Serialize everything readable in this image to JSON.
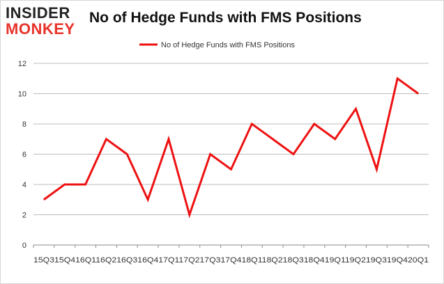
{
  "logo": {
    "line1": "INSIDER",
    "line2": "MONKEY"
  },
  "chart_data": {
    "type": "line",
    "title": "No of Hedge Funds with FMS Positions",
    "xlabel": "",
    "ylabel": "",
    "categories": [
      "2015Q3",
      "2015Q4",
      "2016Q1",
      "2016Q2",
      "2016Q3",
      "2016Q4",
      "2017Q1",
      "2017Q2",
      "2017Q3",
      "2017Q4",
      "2018Q1",
      "2018Q2",
      "2018Q3",
      "2018Q4",
      "2019Q1",
      "2019Q2",
      "2019Q3",
      "2019Q4",
      "2020Q1"
    ],
    "tick_label_strip": "15Q315Q416Q116Q216Q316Q417Q117Q217Q317Q418Q118Q218Q318Q419Q119Q219Q319Q420Q1",
    "series": [
      {
        "name": "No of Hedge Funds with FMS Positions",
        "color": "#ee1111",
        "values": [
          3,
          4,
          4,
          7,
          6,
          3,
          7,
          2,
          6,
          5,
          8,
          7,
          6,
          8,
          7,
          9,
          5,
          11,
          10
        ]
      }
    ],
    "ylim": [
      0,
      12
    ],
    "yticks": [
      0,
      2,
      4,
      6,
      8,
      10,
      12
    ],
    "grid": true,
    "legend": "top-center"
  }
}
